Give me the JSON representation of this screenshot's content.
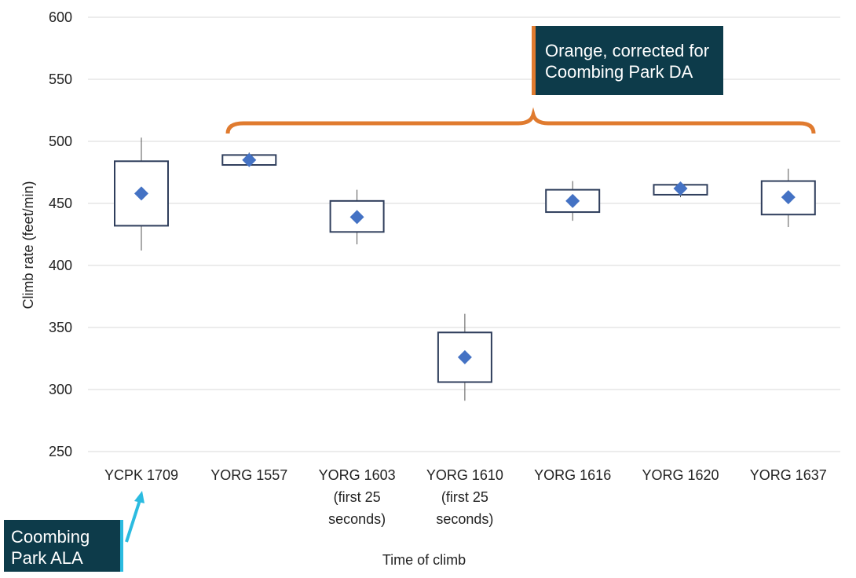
{
  "chart_data": {
    "type": "box",
    "title": "",
    "xlabel": "Time of climb",
    "ylabel": "Climb rate (feet/min)",
    "ylim": [
      250,
      600
    ],
    "yticks": [
      250,
      300,
      350,
      400,
      450,
      500,
      550,
      600
    ],
    "grid": true,
    "categories": [
      [
        "YCPK 1709"
      ],
      [
        "YORG 1557"
      ],
      [
        "YORG 1603",
        "(first 25",
        "seconds)"
      ],
      [
        "YORG 1610",
        "(first 25",
        "seconds)"
      ],
      [
        "YORG 1616"
      ],
      [
        "YORG 1620"
      ],
      [
        "YORG 1637"
      ]
    ],
    "boxes": [
      {
        "mean": 458,
        "q1": 432,
        "q3": 484,
        "min": 412,
        "max": 503
      },
      {
        "mean": 485,
        "q1": 481,
        "q3": 489,
        "min": 480,
        "max": 491
      },
      {
        "mean": 439,
        "q1": 427,
        "q3": 452,
        "min": 417,
        "max": 461
      },
      {
        "mean": 326,
        "q1": 306,
        "q3": 346,
        "min": 291,
        "max": 361
      },
      {
        "mean": 452,
        "q1": 443,
        "q3": 461,
        "min": 436,
        "max": 468
      },
      {
        "mean": 462,
        "q1": 457,
        "q3": 465,
        "min": 455,
        "max": 467
      },
      {
        "mean": 455,
        "q1": 441,
        "q3": 468,
        "min": 431,
        "max": 478
      }
    ],
    "colors": {
      "box": "#2f3e5c",
      "marker": "#4472c4",
      "grid": "#d9d9d9",
      "brace": "#e07b2f",
      "arrow": "#2bbbe0"
    }
  },
  "annotations": {
    "corrected_note": [
      "Orange, corrected for",
      "Coombing Park DA"
    ],
    "site_note": [
      "Coombing",
      "Park ALA"
    ]
  }
}
